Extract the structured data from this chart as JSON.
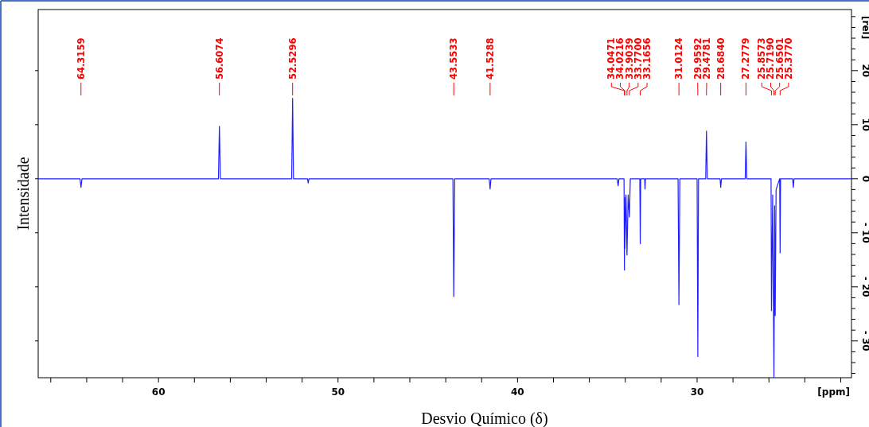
{
  "chart_data": {
    "type": "line",
    "xlabel": "Desvio Químico (δ)",
    "ylabel": "Intensidade",
    "xlim": [
      66.7,
      21.4
    ],
    "ylim": [
      -36.8,
      31.3
    ],
    "xticks": [
      {
        "value": 66,
        "label": null
      },
      {
        "value": 64,
        "label": null
      },
      {
        "value": 62,
        "label": null
      },
      60,
      {
        "value": 58,
        "label": null
      },
      {
        "value": 56,
        "label": null
      },
      {
        "value": 54,
        "label": null
      },
      {
        "value": 52,
        "label": null
      },
      50,
      {
        "value": 48,
        "label": null
      },
      {
        "value": 46,
        "label": null
      },
      {
        "value": 44,
        "label": null
      },
      {
        "value": 42,
        "label": null
      },
      40,
      {
        "value": 38,
        "label": null
      },
      {
        "value": 36,
        "label": null
      },
      {
        "value": 34,
        "label": null
      },
      {
        "value": 32,
        "label": null
      },
      30,
      {
        "value": 28,
        "label": null
      },
      {
        "value": 26,
        "label": null
      },
      {
        "value": 24,
        "label": null
      },
      {
        "value": 22,
        "label": null
      }
    ],
    "yticks": [
      {
        "value": -36,
        "label": null
      },
      {
        "value": -34,
        "label": null
      },
      {
        "value": -32,
        "label": null
      },
      {
        "value": -30,
        "label": "- 30"
      },
      {
        "value": -28,
        "label": null
      },
      {
        "value": -26,
        "label": null
      },
      {
        "value": -24,
        "label": null
      },
      {
        "value": -22,
        "label": null
      },
      {
        "value": -20,
        "label": "- 20"
      },
      {
        "value": -18,
        "label": null
      },
      {
        "value": -16,
        "label": null
      },
      {
        "value": -14,
        "label": null
      },
      {
        "value": -12,
        "label": null
      },
      {
        "value": -10,
        "label": "- 10"
      },
      {
        "value": -8,
        "label": null
      },
      {
        "value": -6,
        "label": null
      },
      {
        "value": -4,
        "label": null
      },
      {
        "value": -2,
        "label": null
      },
      0,
      {
        "value": 2,
        "label": null
      },
      {
        "value": 4,
        "label": null
      },
      {
        "value": 6,
        "label": null
      },
      {
        "value": 8,
        "label": null
      },
      10,
      {
        "value": 12,
        "label": null
      },
      {
        "value": 14,
        "label": null
      },
      {
        "value": 16,
        "label": null
      },
      {
        "value": 18,
        "label": null
      },
      20,
      {
        "value": 22,
        "label": null
      },
      {
        "value": 24,
        "label": null
      },
      {
        "value": 26,
        "label": null
      },
      {
        "value": 28,
        "label": null
      },
      {
        "value": 30,
        "label": null
      }
    ],
    "grid": false,
    "marker": "none",
    "line_style": "solid",
    "series": [
      {
        "color": "#1f1fff",
        "x": [
          66.7,
          64.37,
          64.3159,
          64.26,
          56.66,
          56.6074,
          56.55,
          52.58,
          52.5296,
          52.48,
          51.7,
          51.66,
          51.62,
          43.6,
          43.5533,
          43.5,
          41.58,
          41.5288,
          41.48,
          34.45,
          34.4,
          34.35,
          34.07,
          34.0471,
          34.034,
          34.0216,
          33.96,
          33.9039,
          33.84,
          33.77,
          33.72,
          33.19,
          33.1656,
          33.14,
          32.92,
          32.9,
          32.88,
          31.06,
          31.0124,
          30.96,
          30.0,
          29.9592,
          29.92,
          29.52,
          29.4781,
          29.43,
          28.72,
          28.684,
          28.64,
          27.32,
          27.2779,
          27.23,
          25.88,
          25.8573,
          25.79,
          25.719,
          25.68,
          25.6501,
          25.6,
          25.4,
          25.377,
          25.35,
          24.68,
          24.64,
          24.6,
          21.4
        ],
        "values": [
          0,
          0,
          -1.6,
          0,
          0,
          9.7,
          0,
          0,
          14.9,
          0,
          0,
          -0.8,
          0,
          0,
          -21.8,
          0,
          0,
          -1.9,
          0,
          0,
          -1.3,
          0,
          0,
          -16.9,
          -3.5,
          -12.9,
          -3,
          -14.1,
          -3,
          -7.1,
          0,
          0,
          -12.0,
          0,
          0,
          -1.9,
          0,
          0,
          -23.3,
          0,
          0,
          -32.9,
          0,
          0,
          8.8,
          0,
          0,
          -1.6,
          0,
          0,
          6.8,
          0,
          0,
          -24.4,
          -3,
          -36.8,
          -5,
          -25.3,
          -2,
          0,
          -13.7,
          0,
          0,
          -1.6,
          0,
          0
        ]
      }
    ],
    "annotations": [
      {
        "text": "64.3159",
        "x": 64.3159
      },
      {
        "text": "56.6074",
        "x": 56.6074
      },
      {
        "text": "52.5296",
        "x": 52.5296
      },
      {
        "text": "43.5533",
        "x": 43.5533
      },
      {
        "text": "41.5288",
        "x": 41.5288
      },
      {
        "text": "34.0471",
        "x": 34.0471
      },
      {
        "text": "34.0216",
        "x": 34.0216
      },
      {
        "text": "33.9039",
        "x": 33.9039
      },
      {
        "text": "33.7700",
        "x": 33.77
      },
      {
        "text": "33.1656",
        "x": 33.1656
      },
      {
        "text": "31.0124",
        "x": 31.0124
      },
      {
        "text": "29.9592",
        "x": 29.9592
      },
      {
        "text": "29.4781",
        "x": 29.4781
      },
      {
        "text": "28.6840",
        "x": 28.684
      },
      {
        "text": "27.2779",
        "x": 27.2779
      },
      {
        "text": "25.8573",
        "x": 25.8573
      },
      {
        "text": "25.7190",
        "x": 25.719
      },
      {
        "text": "25.6501",
        "x": 25.6501
      },
      {
        "text": "25.3770",
        "x": 25.377
      },
      "[ppm]",
      "[rel]"
    ]
  }
}
